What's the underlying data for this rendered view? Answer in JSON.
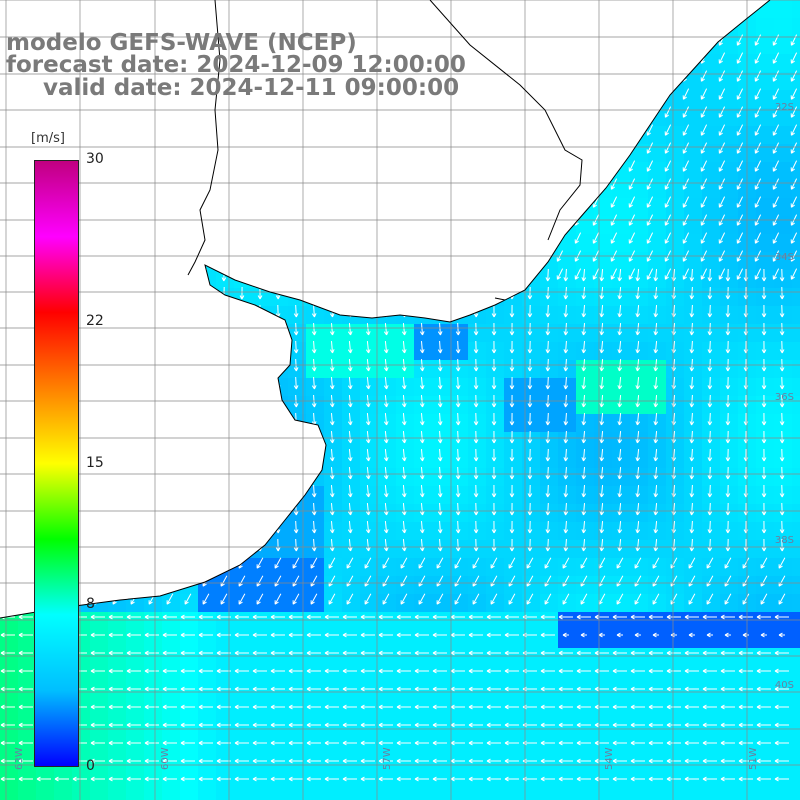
{
  "title": {
    "model": "modelo GEFS-WAVE (NCEP)",
    "forecast": "forecast date: 2024-12-09 12:00:00",
    "valid": "valid date: 2024-12-11 09:00:00"
  },
  "colorbar": {
    "unit": "[m/s]",
    "ticks": [
      "30",
      "22",
      "15",
      "8",
      "0"
    ],
    "tick_values": [
      30,
      22,
      15,
      8,
      0
    ],
    "min": 0,
    "max": 30,
    "colors": [
      "#0000ff",
      "#00bfff",
      "#00ffff",
      "#00ff00",
      "#ffff00",
      "#ff8000",
      "#ff0000",
      "#ff00ff",
      "#c00080"
    ]
  },
  "map": {
    "land_color": "#ffffff",
    "grid_color": "#888888",
    "coast_color": "#000000",
    "arrow_color": "#ffffff",
    "lat_labels": [
      "32S",
      "34S",
      "36S",
      "38S",
      "40S"
    ],
    "lon_labels": [
      "63W",
      "60W",
      "57W",
      "54W",
      "51W"
    ]
  }
}
